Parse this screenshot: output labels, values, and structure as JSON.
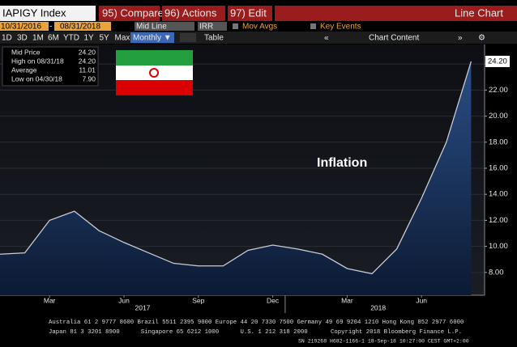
{
  "toolbar": {
    "ticker": "IAPIGY Index",
    "buttons": [
      "95) Compare",
      "96) Actions",
      "97) Edit"
    ],
    "view": "Line Chart",
    "start_date": "10/31/2016",
    "end_date": "08/31/2018",
    "line_type": "Mid Line",
    "currency": "IRR",
    "mov_avgs": "Mov Avgs",
    "key_events": "Key Events",
    "ranges": [
      "1D",
      "3D",
      "1M",
      "6M",
      "YTD",
      "1Y",
      "5Y",
      "Max"
    ],
    "period": "Monthly ▼",
    "table": "Table",
    "chart_content": "Chart Content"
  },
  "legend": {
    "rows": [
      [
        "Mid Price",
        "24.20"
      ],
      [
        "High on 08/31/18",
        "24.20"
      ],
      [
        "Average",
        "11.01"
      ],
      [
        "Low on 04/30/18",
        "7.90"
      ]
    ]
  },
  "chart_data": {
    "type": "line",
    "annotation": "Inflation",
    "categories": [
      null,
      null,
      "Mar",
      null,
      null,
      "Jun",
      null,
      null,
      "Sep",
      null,
      null,
      "Dec",
      null,
      null,
      "Mar",
      null,
      null,
      "Jun",
      null,
      null
    ],
    "year_labels": [
      "2017",
      "2018"
    ],
    "series": [
      {
        "name": "Mid Price",
        "color": "#c8ccd4",
        "values": [
          9.4,
          9.5,
          12.0,
          12.7,
          11.2,
          10.3,
          9.5,
          8.7,
          8.5,
          8.5,
          9.7,
          10.1,
          9.8,
          9.4,
          8.3,
          7.9,
          9.8,
          13.7,
          18.0,
          24.2
        ],
        "value_labels": [
          null,
          null,
          null,
          null,
          null,
          null,
          null,
          null,
          null,
          null,
          null,
          null,
          null,
          null,
          null,
          null,
          null,
          null,
          null,
          "24.20"
        ]
      }
    ],
    "ylim": [
      6.25,
      25.5
    ],
    "yticks": [
      {
        "value": 8,
        "label": "8.00"
      },
      {
        "value": 10,
        "label": "10.00"
      },
      {
        "value": 12,
        "label": "12.00"
      },
      {
        "value": 14,
        "label": "14.00"
      },
      {
        "value": 16,
        "label": "16.00"
      },
      {
        "value": 18,
        "label": "18.00"
      },
      {
        "value": 20,
        "label": "20.00"
      },
      {
        "value": 22,
        "label": "22.00"
      },
      {
        "value": 24,
        "label": "24.00"
      }
    ],
    "grid": true
  },
  "footer": [
    "Australia 61 2 9777 8600 Brazil 5511 2395 9000 Europe 44 20 7330 7500 Germany 49 69 9204 1210 Hong Kong 852 2977 6000",
    "Japan 81 3 3201 8900      Singapore 65 6212 1000      U.S. 1 212 318 2000",
    "Copyright 2018 Bloomberg Finance L.P.",
    "SN 219268 H682-1166-1 18-Sep-18 10:27:00 CEST GMT+2:00"
  ]
}
